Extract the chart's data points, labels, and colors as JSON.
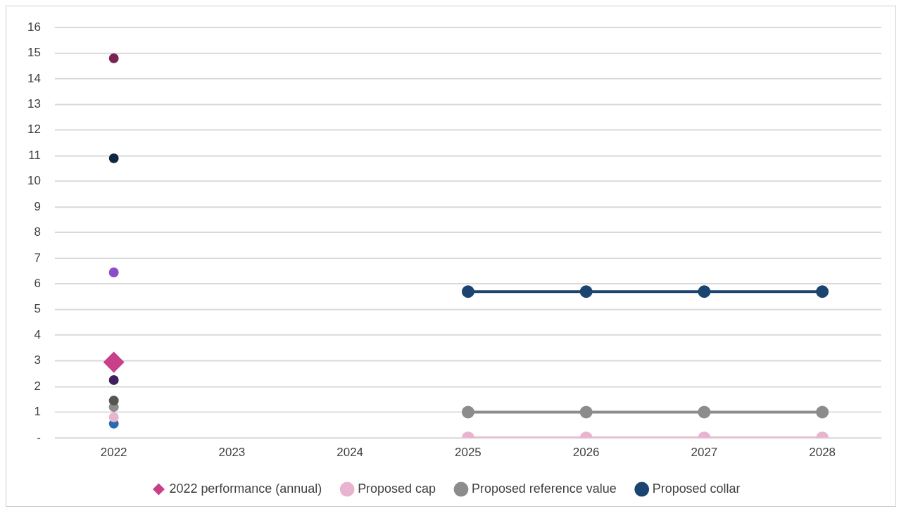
{
  "chart_data": {
    "type": "line",
    "categories": [
      "2022",
      "2023",
      "2024",
      "2025",
      "2026",
      "2027",
      "2028"
    ],
    "ylim": [
      0,
      16
    ],
    "yticks": [
      {
        "value": 0,
        "label": "-"
      },
      1,
      2,
      3,
      4,
      5,
      6,
      7,
      8,
      9,
      10,
      11,
      12,
      13,
      14,
      15,
      16
    ],
    "grid": "y",
    "legend": "bottom",
    "series": [
      {
        "type": "scatter",
        "marker": "circle",
        "color": "#7a2350",
        "values": [
          14.8,
          null,
          null,
          null,
          null,
          null,
          null
        ]
      },
      {
        "type": "scatter",
        "marker": "circle",
        "color": "#0d2840",
        "values": [
          10.9,
          null,
          null,
          null,
          null,
          null,
          null
        ]
      },
      {
        "type": "scatter",
        "marker": "circle",
        "color": "#8a4cc8",
        "values": [
          6.45,
          null,
          null,
          null,
          null,
          null,
          null
        ]
      },
      {
        "type": "scatter",
        "marker": "circle",
        "color": "#3f1f5c",
        "values": [
          2.25,
          null,
          null,
          null,
          null,
          null,
          null
        ]
      },
      {
        "type": "scatter",
        "marker": "circle",
        "color": "#555555",
        "values": [
          1.45,
          null,
          null,
          null,
          null,
          null,
          null
        ]
      },
      {
        "type": "scatter",
        "marker": "circle",
        "color": "#8c8c8c",
        "values": [
          1.2,
          null,
          null,
          null,
          null,
          null,
          null
        ]
      },
      {
        "type": "scatter",
        "marker": "circle",
        "color": "#e8b4d0",
        "values": [
          0.8,
          null,
          null,
          null,
          null,
          null,
          null
        ]
      },
      {
        "type": "scatter",
        "marker": "circle",
        "color": "#2a6aad",
        "values": [
          0.55,
          null,
          null,
          null,
          null,
          null,
          null
        ]
      },
      {
        "type": "scatter",
        "marker": "diamond",
        "name": "2022 performance (annual)",
        "color": "#c8408a",
        "values": [
          2.95,
          null,
          null,
          null,
          null,
          null,
          null
        ]
      },
      {
        "type": "line",
        "marker": "circle",
        "name": "Proposed cap",
        "color": "#e8b4d0",
        "values": [
          null,
          null,
          null,
          0,
          0,
          0,
          0
        ]
      },
      {
        "type": "line",
        "marker": "circle",
        "name": "Proposed reference value",
        "color": "#8c8c8c",
        "values": [
          null,
          null,
          null,
          1,
          1,
          1,
          1
        ]
      },
      {
        "type": "line",
        "marker": "circle",
        "name": "Proposed collar",
        "color": "#1c4470",
        "values": [
          null,
          null,
          null,
          5.7,
          5.7,
          5.7,
          5.7
        ]
      }
    ]
  }
}
